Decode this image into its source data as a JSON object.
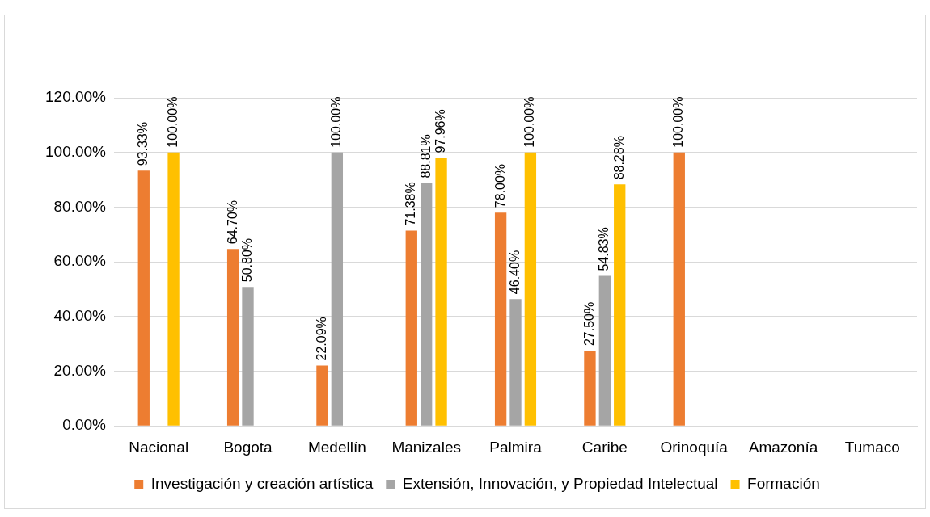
{
  "chart_data": {
    "type": "bar",
    "categories": [
      "Nacional",
      "Bogota",
      "Medellín",
      "Manizales",
      "Palmira",
      "Caribe",
      "Orinoquía",
      "Amazonía",
      "Tumaco"
    ],
    "series": [
      {
        "name": "Investigación y creación artística",
        "color": "#ed7d31",
        "values": [
          93.33,
          64.7,
          22.09,
          71.38,
          78.0,
          27.5,
          100.0,
          null,
          null
        ],
        "value_labels": [
          "93.33%",
          "64.70%",
          "22.09%",
          "71.38%",
          "78.00%",
          "27.50%",
          "100.00%",
          null,
          null
        ]
      },
      {
        "name": "Extensión, Innovación, y Propiedad Intelectual",
        "color": "#a5a5a5",
        "values": [
          null,
          50.8,
          100.0,
          88.81,
          46.4,
          54.83,
          null,
          null,
          null
        ],
        "value_labels": [
          null,
          "50.80%",
          "100.00%",
          "88.81%",
          "46.40%",
          "54.83%",
          null,
          null,
          null
        ]
      },
      {
        "name": "Formación",
        "color": "#ffc000",
        "values": [
          100.0,
          null,
          null,
          97.96,
          100.0,
          88.28,
          null,
          null,
          null
        ],
        "value_labels": [
          "100.00%",
          null,
          null,
          "97.96%",
          "100.00%",
          "88.28%",
          null,
          null,
          null
        ]
      }
    ],
    "ylim": [
      0,
      120
    ],
    "yticks": [
      {
        "value": 0,
        "label": "0.00%"
      },
      {
        "value": 20,
        "label": "20.00%"
      },
      {
        "value": 40,
        "label": "40.00%"
      },
      {
        "value": 60,
        "label": "60.00%"
      },
      {
        "value": 80,
        "label": "80.00%"
      },
      {
        "value": 100,
        "label": "100.00%"
      },
      {
        "value": 120,
        "label": "120.00%"
      }
    ],
    "grid": "y",
    "legend": "bottom"
  }
}
